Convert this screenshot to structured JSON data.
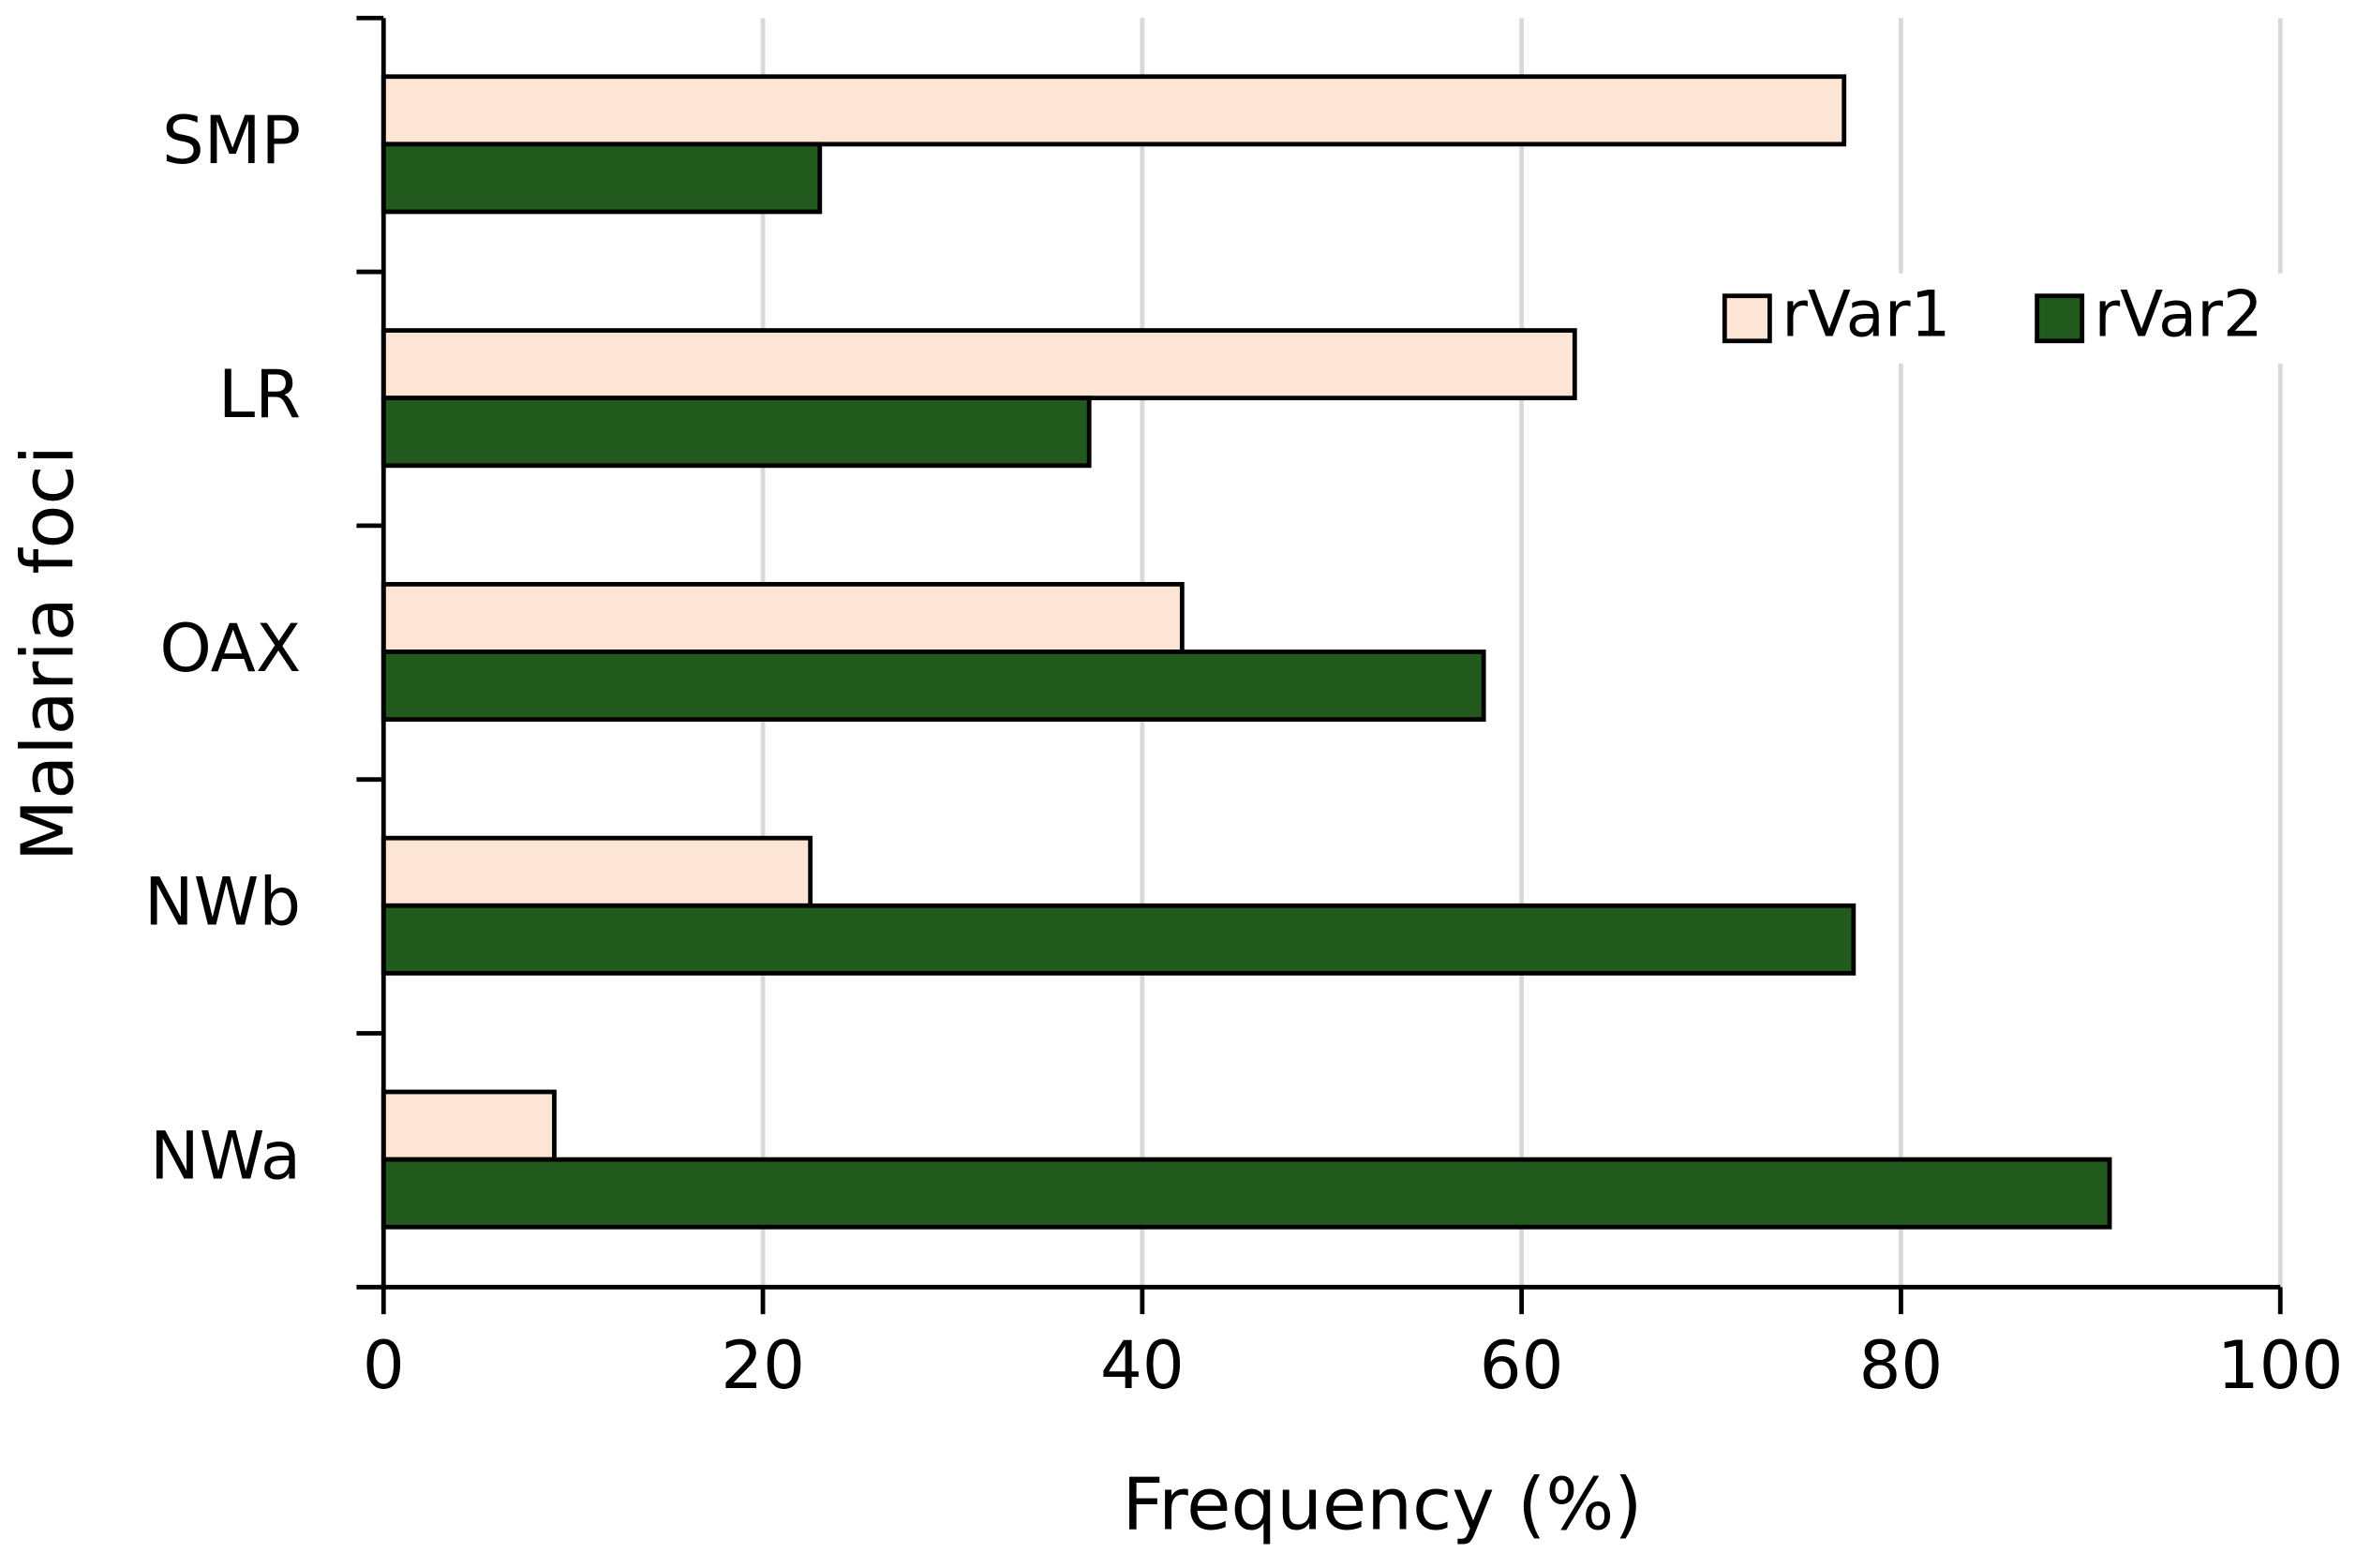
{
  "chart_data": {
    "type": "hbar",
    "xlabel": "Frequency (%)",
    "ylabel": "Malaria foci",
    "categories": [
      "SMP",
      "LR",
      "OAX",
      "NWb",
      "NWa"
    ],
    "series": [
      {
        "name": "rVar1",
        "color": "#fde5d6",
        "values": [
          77.0,
          62.8,
          42.1,
          22.5,
          9.0
        ]
      },
      {
        "name": "rVar2",
        "color": "#215a1c",
        "values": [
          23.0,
          37.2,
          58.0,
          77.5,
          91.0
        ]
      }
    ],
    "xlim": [
      0,
      100
    ],
    "xticks": [
      0,
      20,
      40,
      60,
      80,
      100
    ],
    "grid": true,
    "legend": "upper right"
  }
}
